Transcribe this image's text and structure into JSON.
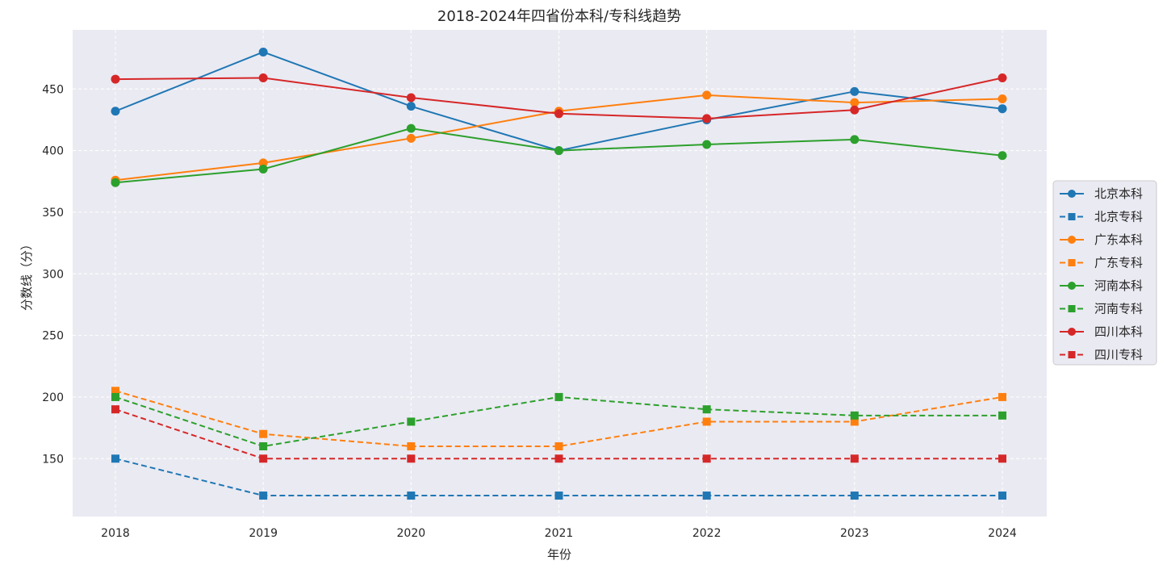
{
  "chart_data": {
    "type": "line",
    "title": "2018-2024年四省份本科/专科线趋势",
    "xlabel": "年份",
    "ylabel": "分数线（分）",
    "x": [
      "2018",
      "2019",
      "2020",
      "2021",
      "2022",
      "2023",
      "2024"
    ],
    "ylim": [
      103,
      498
    ],
    "yticks": [
      "150",
      "200",
      "250",
      "300",
      "350",
      "400",
      "450"
    ],
    "grid": true,
    "legend_position": "right",
    "colors": {
      "blue": "#1f77b4",
      "orange": "#ff7f0e",
      "green": "#2ca02c",
      "red": "#d62728",
      "plot_background": "#eaeaf2"
    },
    "series": [
      {
        "name": "北京本科",
        "color": "#1f77b4",
        "dashed": false,
        "marker": "circle",
        "values": [
          432,
          480,
          436,
          400,
          425,
          448,
          434
        ]
      },
      {
        "name": "北京专科",
        "color": "#1f77b4",
        "dashed": true,
        "marker": "square",
        "values": [
          150,
          120,
          120,
          120,
          120,
          120,
          120
        ]
      },
      {
        "name": "广东本科",
        "color": "#ff7f0e",
        "dashed": false,
        "marker": "circle",
        "values": [
          376,
          390,
          410,
          432,
          445,
          439,
          442
        ]
      },
      {
        "name": "广东专科",
        "color": "#ff7f0e",
        "dashed": true,
        "marker": "square",
        "values": [
          205,
          170,
          160,
          160,
          180,
          180,
          200
        ]
      },
      {
        "name": "河南本科",
        "color": "#2ca02c",
        "dashed": false,
        "marker": "circle",
        "values": [
          374,
          385,
          418,
          400,
          405,
          409,
          396
        ]
      },
      {
        "name": "河南专科",
        "color": "#2ca02c",
        "dashed": true,
        "marker": "square",
        "values": [
          200,
          160,
          180,
          200,
          190,
          185,
          185
        ]
      },
      {
        "name": "四川本科",
        "color": "#d62728",
        "dashed": false,
        "marker": "circle",
        "values": [
          458,
          459,
          443,
          430,
          426,
          433,
          459
        ]
      },
      {
        "name": "四川专科",
        "color": "#d62728",
        "dashed": true,
        "marker": "square",
        "values": [
          190,
          150,
          150,
          150,
          150,
          150,
          150
        ]
      }
    ]
  }
}
